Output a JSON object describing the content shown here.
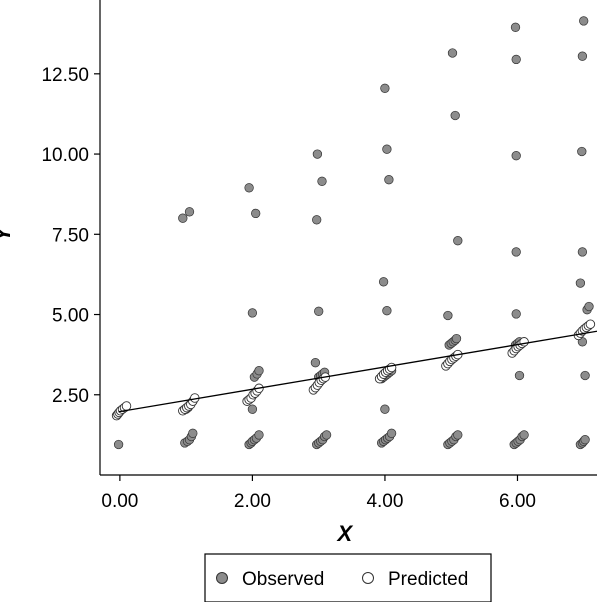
{
  "chart_data": {
    "type": "scatter",
    "xlabel": "X",
    "ylabel": "Y",
    "xlim": [
      -0.3,
      7.2
    ],
    "ylim": [
      0.0,
      14.8
    ],
    "xticks": [
      0.0,
      2.0,
      4.0,
      6.0
    ],
    "xtick_labels": [
      "0.00",
      "2.00",
      "4.00",
      "6.00"
    ],
    "yticks": [
      2.5,
      5.0,
      7.5,
      10.0,
      12.5
    ],
    "ytick_labels": [
      "2.50",
      "5.00",
      "7.50",
      "10.00",
      "12.50"
    ],
    "legend_position": "bottom",
    "grid": false,
    "series": [
      {
        "name": "Observed",
        "color": "#8c8c8c",
        "marker": "filled-circle",
        "points": [
          [
            -0.02,
            0.95
          ],
          [
            0.95,
            8.0
          ],
          [
            1.05,
            8.2
          ],
          [
            1.0,
            2.05
          ],
          [
            1.03,
            2.1
          ],
          [
            1.06,
            2.2
          ],
          [
            1.1,
            2.3
          ],
          [
            0.98,
            1.0
          ],
          [
            1.02,
            1.05
          ],
          [
            1.05,
            1.1
          ],
          [
            1.08,
            1.2
          ],
          [
            1.1,
            1.3
          ],
          [
            1.95,
            8.95
          ],
          [
            2.05,
            8.15
          ],
          [
            2.0,
            5.05
          ],
          [
            2.0,
            2.05
          ],
          [
            2.03,
            3.05
          ],
          [
            2.07,
            3.15
          ],
          [
            2.1,
            3.25
          ],
          [
            1.95,
            0.95
          ],
          [
            1.98,
            1.0
          ],
          [
            2.0,
            1.05
          ],
          [
            2.03,
            1.1
          ],
          [
            2.06,
            1.15
          ],
          [
            2.1,
            1.25
          ],
          [
            2.98,
            10.0
          ],
          [
            3.05,
            9.15
          ],
          [
            2.97,
            7.95
          ],
          [
            3.0,
            5.1
          ],
          [
            2.95,
            3.5
          ],
          [
            3.0,
            3.05
          ],
          [
            3.03,
            3.1
          ],
          [
            3.06,
            3.15
          ],
          [
            3.09,
            3.2
          ],
          [
            2.97,
            0.95
          ],
          [
            3.0,
            1.0
          ],
          [
            3.03,
            1.05
          ],
          [
            3.06,
            1.1
          ],
          [
            3.09,
            1.2
          ],
          [
            3.12,
            1.25
          ],
          [
            4.0,
            12.05
          ],
          [
            4.03,
            10.15
          ],
          [
            4.06,
            9.2
          ],
          [
            3.98,
            6.02
          ],
          [
            4.03,
            5.12
          ],
          [
            3.95,
            3.0
          ],
          [
            3.98,
            3.05
          ],
          [
            4.01,
            3.1
          ],
          [
            4.04,
            3.15
          ],
          [
            4.07,
            3.2
          ],
          [
            4.1,
            3.25
          ],
          [
            4.0,
            2.05
          ],
          [
            3.95,
            1.0
          ],
          [
            3.98,
            1.05
          ],
          [
            4.01,
            1.1
          ],
          [
            4.04,
            1.15
          ],
          [
            4.07,
            1.2
          ],
          [
            4.1,
            1.3
          ],
          [
            5.02,
            13.15
          ],
          [
            5.06,
            11.2
          ],
          [
            5.1,
            7.3
          ],
          [
            4.95,
            4.97
          ],
          [
            4.97,
            4.05
          ],
          [
            5.0,
            4.1
          ],
          [
            5.03,
            4.15
          ],
          [
            5.06,
            4.2
          ],
          [
            5.08,
            4.25
          ],
          [
            4.95,
            0.95
          ],
          [
            4.98,
            1.0
          ],
          [
            5.01,
            1.05
          ],
          [
            5.04,
            1.1
          ],
          [
            5.07,
            1.2
          ],
          [
            5.1,
            1.25
          ],
          [
            5.97,
            13.95
          ],
          [
            5.98,
            12.95
          ],
          [
            5.98,
            9.95
          ],
          [
            5.98,
            6.95
          ],
          [
            5.98,
            5.02
          ],
          [
            5.97,
            4.05
          ],
          [
            6.0,
            4.1
          ],
          [
            6.03,
            4.15
          ],
          [
            6.03,
            3.1
          ],
          [
            5.95,
            0.95
          ],
          [
            5.98,
            1.0
          ],
          [
            6.01,
            1.05
          ],
          [
            6.04,
            1.1
          ],
          [
            6.07,
            1.2
          ],
          [
            6.1,
            1.25
          ],
          [
            7.0,
            14.15
          ],
          [
            6.98,
            13.05
          ],
          [
            6.97,
            10.08
          ],
          [
            6.98,
            6.95
          ],
          [
            6.95,
            5.98
          ],
          [
            7.05,
            5.15
          ],
          [
            7.08,
            5.25
          ],
          [
            6.98,
            4.15
          ],
          [
            7.02,
            3.1
          ],
          [
            6.95,
            0.95
          ],
          [
            6.98,
            1.0
          ],
          [
            7.0,
            1.05
          ],
          [
            7.02,
            1.1
          ]
        ]
      },
      {
        "name": "Predicted",
        "color": "#ffffff",
        "marker": "hollow-circle",
        "points": [
          [
            -0.05,
            1.85
          ],
          [
            -0.03,
            1.9
          ],
          [
            -0.01,
            1.95
          ],
          [
            0.01,
            2.0
          ],
          [
            0.04,
            2.05
          ],
          [
            0.07,
            2.1
          ],
          [
            0.1,
            2.15
          ],
          [
            0.95,
            2.0
          ],
          [
            0.98,
            2.05
          ],
          [
            1.01,
            2.1
          ],
          [
            1.04,
            2.15
          ],
          [
            1.07,
            2.2
          ],
          [
            1.1,
            2.3
          ],
          [
            1.13,
            2.4
          ],
          [
            1.92,
            2.3
          ],
          [
            1.95,
            2.35
          ],
          [
            1.98,
            2.4
          ],
          [
            2.01,
            2.5
          ],
          [
            2.04,
            2.55
          ],
          [
            2.07,
            2.62
          ],
          [
            2.1,
            2.7
          ],
          [
            2.92,
            2.65
          ],
          [
            2.95,
            2.72
          ],
          [
            2.98,
            2.8
          ],
          [
            3.01,
            2.88
          ],
          [
            3.04,
            2.95
          ],
          [
            3.07,
            3.0
          ],
          [
            3.1,
            3.05
          ],
          [
            3.92,
            3.0
          ],
          [
            3.95,
            3.07
          ],
          [
            3.98,
            3.14
          ],
          [
            4.01,
            3.2
          ],
          [
            4.04,
            3.25
          ],
          [
            4.07,
            3.3
          ],
          [
            4.1,
            3.35
          ],
          [
            4.92,
            3.4
          ],
          [
            4.95,
            3.47
          ],
          [
            4.98,
            3.54
          ],
          [
            5.01,
            3.6
          ],
          [
            5.04,
            3.65
          ],
          [
            5.07,
            3.7
          ],
          [
            5.1,
            3.75
          ],
          [
            5.92,
            3.8
          ],
          [
            5.95,
            3.87
          ],
          [
            5.98,
            3.94
          ],
          [
            6.01,
            4.0
          ],
          [
            6.04,
            4.05
          ],
          [
            6.07,
            4.1
          ],
          [
            6.1,
            4.15
          ],
          [
            6.92,
            4.35
          ],
          [
            6.95,
            4.42
          ],
          [
            6.98,
            4.49
          ],
          [
            7.01,
            4.55
          ],
          [
            7.04,
            4.6
          ],
          [
            7.07,
            4.65
          ],
          [
            7.1,
            4.7
          ]
        ]
      }
    ],
    "fit_line": {
      "x": [
        -0.02,
        7.2
      ],
      "y": [
        1.97,
        4.48
      ],
      "color": "#000000"
    }
  },
  "legend": {
    "observed_label": "Observed",
    "predicted_label": "Predicted"
  }
}
